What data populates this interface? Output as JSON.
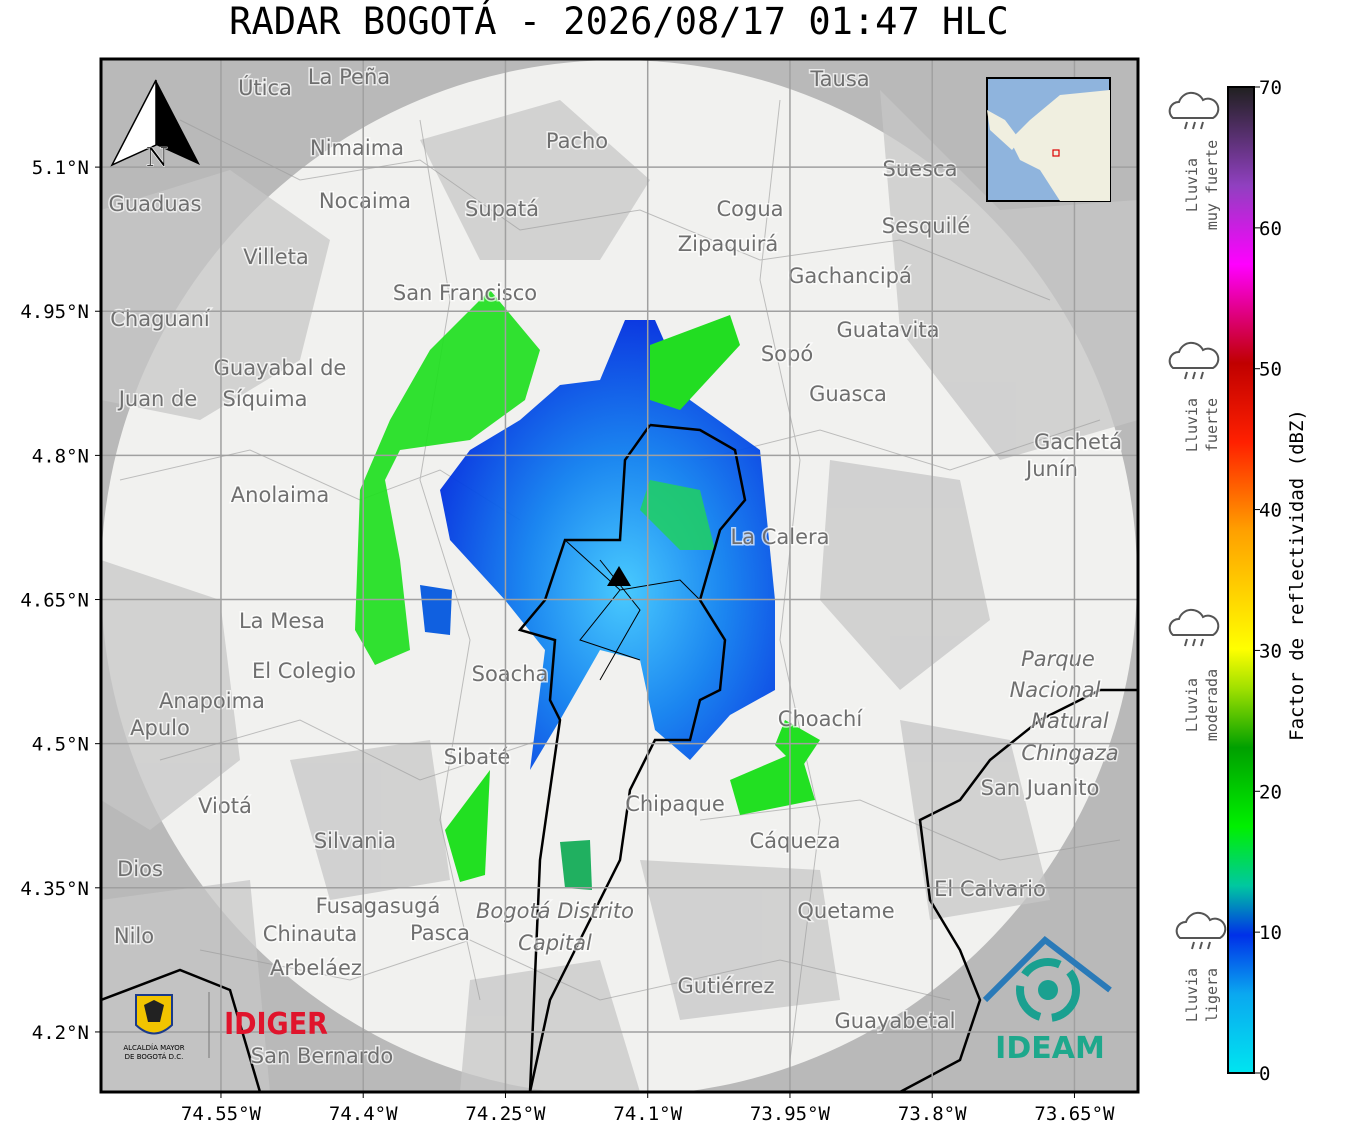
{
  "title": "RADAR BOGOTÁ - 2026/08/17 01:47 HLC",
  "map": {
    "compass": "N",
    "xlim": [
      -74.6765,
      -73.583
    ],
    "ylim": [
      4.1375,
      5.2125
    ],
    "xticks": [
      {
        "value": -74.55,
        "label": "74.55°W"
      },
      {
        "value": -74.4,
        "label": "74.4°W"
      },
      {
        "value": -74.25,
        "label": "74.25°W"
      },
      {
        "value": -74.1,
        "label": "74.1°W"
      },
      {
        "value": -73.95,
        "label": "73.95°W"
      },
      {
        "value": -73.8,
        "label": "73.8°W"
      },
      {
        "value": -73.65,
        "label": "73.65°W"
      }
    ],
    "yticks": [
      {
        "value": 5.1,
        "label": "5.1°N"
      },
      {
        "value": 4.95,
        "label": "4.95°N"
      },
      {
        "value": 4.8,
        "label": "4.8°N"
      },
      {
        "value": 4.65,
        "label": "4.65°N"
      },
      {
        "value": 4.5,
        "label": "4.5°N"
      },
      {
        "value": 4.35,
        "label": "4.35°N"
      },
      {
        "value": 4.2,
        "label": "4.2°N"
      }
    ],
    "grid": true,
    "place_names": [
      "La Peña",
      "Útica",
      "Tausa",
      "Nimaima",
      "Pacho",
      "Suesca",
      "Guaduas",
      "Nocaima",
      "Supatá",
      "Cogua",
      "Sesquilé",
      "Villeta",
      "Zipaquirá",
      "Gachancipá",
      "San Francisco",
      "Chaguaní",
      "Guatavita",
      "Sopó",
      "Guayabal de",
      "Síquima",
      "Guasca",
      "Juan de",
      "Gachetá",
      "Junín",
      "Anolaima",
      "La Calera",
      "La Mesa",
      "El Colegio",
      "Soacha",
      "Parque",
      "Nacional",
      "Natural",
      "Chingaza",
      "Anapoima",
      "Apulo",
      "Choachí",
      "Sibaté",
      "San Juanito",
      "Viotá",
      "Chipaque",
      "Cáqueza",
      "Silvania",
      "Dios",
      "El Calvario",
      "Fusagasugá",
      "Bogotá Distrito",
      "Capital",
      "Quetame",
      "Nilo",
      "Chinauta",
      "Pasca",
      "Arbeláez",
      "Gutiérrez",
      "Guayabetal",
      "San Bernardo"
    ]
  },
  "colorbar": {
    "label": "Factor de reflectividad (dBZ)",
    "lim": [
      0,
      70
    ],
    "ticks": [
      0,
      10,
      20,
      30,
      40,
      50,
      60,
      70
    ]
  },
  "rain_levels": [
    {
      "lines": [
        "Lluvia",
        "muy fuerte"
      ]
    },
    {
      "lines": [
        "Lluvia",
        "fuerte"
      ]
    },
    {
      "lines": [
        "Lluvia",
        "moderada"
      ]
    },
    {
      "lines": [
        "Lluvia",
        "ligera"
      ]
    }
  ],
  "logos": {
    "alcaldia": [
      "ALCALDÍA MAYOR",
      "DE BOGOTÁ D.C."
    ],
    "idiger": "IDIGER",
    "ideam": "IDEAM"
  }
}
